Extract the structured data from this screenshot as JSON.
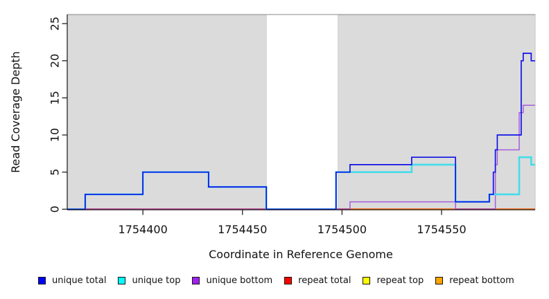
{
  "chart_data": {
    "type": "line",
    "subtype": "step-coverage",
    "title": "",
    "xlabel": "Coordinate in Reference Genome",
    "ylabel": "Read Coverage Depth",
    "xlim": [
      1754362,
      1754597
    ],
    "ylim": [
      0,
      26.2
    ],
    "x_ticks": [
      "1754400",
      "1754450",
      "1754500",
      "1754550"
    ],
    "x_tick_values": [
      1754400,
      1754450,
      1754500,
      1754550
    ],
    "y_ticks": [
      "0",
      "5",
      "10",
      "15",
      "20",
      "25"
    ],
    "y_tick_values": [
      0,
      5,
      10,
      15,
      20,
      25
    ],
    "grid": false,
    "legend_position": "bottom",
    "shade_color": "#dbdbdb",
    "shaded_regions": [
      [
        1754362,
        1754462
      ],
      [
        1754498,
        1754597
      ]
    ],
    "unshaded_gap": [
      1754462,
      1754498
    ],
    "series": [
      {
        "name": "unique total",
        "color": "#0000ff",
        "line_color": "#1111e8",
        "steps": [
          [
            1754362,
            0
          ],
          [
            1754371,
            2
          ],
          [
            1754400,
            5
          ],
          [
            1754433,
            3
          ],
          [
            1754462,
            0
          ],
          [
            1754497,
            5
          ],
          [
            1754504,
            6
          ],
          [
            1754535,
            7
          ],
          [
            1754557,
            1
          ],
          [
            1754574,
            2
          ],
          [
            1754576,
            5
          ],
          [
            1754577,
            8
          ],
          [
            1754578,
            10
          ],
          [
            1754590,
            20
          ],
          [
            1754591,
            21
          ],
          [
            1754595,
            20
          ],
          [
            1754597,
            20
          ]
        ]
      },
      {
        "name": "unique top",
        "color": "#00ffff",
        "line_color": "#45dcea",
        "steps": [
          [
            1754362,
            0
          ],
          [
            1754371,
            2
          ],
          [
            1754400,
            5
          ],
          [
            1754433,
            3
          ],
          [
            1754462,
            0
          ],
          [
            1754497,
            5
          ],
          [
            1754535,
            6
          ],
          [
            1754557,
            1
          ],
          [
            1754574,
            2
          ],
          [
            1754589,
            7
          ],
          [
            1754595,
            6
          ],
          [
            1754597,
            6
          ]
        ]
      },
      {
        "name": "unique bottom",
        "color": "#a020f0",
        "line_color": "#a55cdc",
        "steps": [
          [
            1754362,
            0
          ],
          [
            1754504,
            1
          ],
          [
            1754557,
            0
          ],
          [
            1754577,
            6
          ],
          [
            1754578,
            8
          ],
          [
            1754589,
            13
          ],
          [
            1754591,
            14
          ],
          [
            1754597,
            14
          ]
        ]
      },
      {
        "name": "repeat total",
        "color": "#ff0000",
        "line_color": "#e03352",
        "steps": [
          [
            1754362,
            0
          ],
          [
            1754597,
            0
          ]
        ]
      },
      {
        "name": "repeat top",
        "color": "#ffff00",
        "line_color": "#f2e722",
        "steps": [
          [
            1754362,
            0
          ],
          [
            1754597,
            0
          ]
        ]
      },
      {
        "name": "repeat bottom",
        "color": "#ffa500",
        "line_color": "#ff9d1e",
        "steps": [
          [
            1754362,
            0
          ],
          [
            1754597,
            0
          ]
        ]
      }
    ]
  }
}
